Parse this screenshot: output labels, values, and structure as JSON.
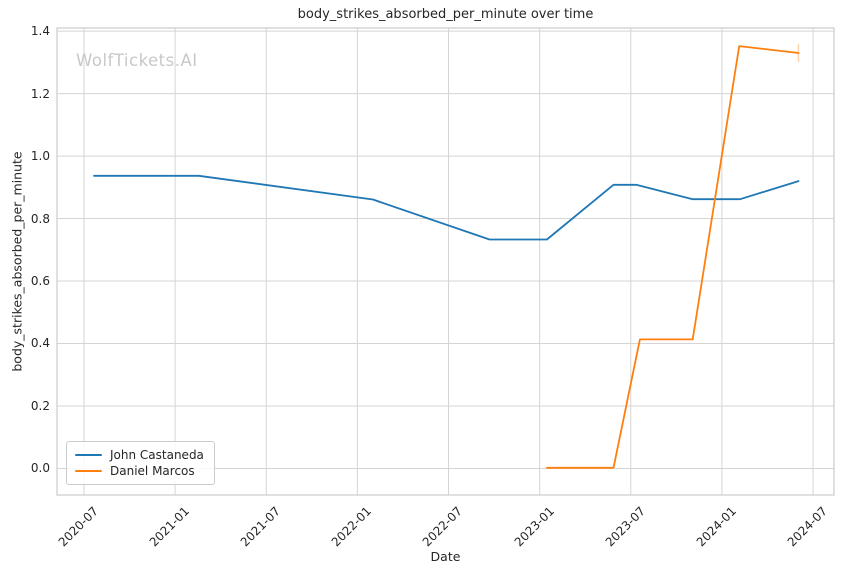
{
  "title": "body_strikes_absorbed_per_minute over time",
  "watermark": "WolfTickets.AI",
  "colors": {
    "series_blue": "#1f77b4",
    "series_orange": "#ff7f0e",
    "grid": "#d5d5d5",
    "axes_border": "#cccccc",
    "text": "#262626",
    "watermark": "#c8c8c8"
  },
  "chart_data": {
    "type": "line",
    "title": "body_strikes_absorbed_per_minute over time",
    "xlabel": "Date",
    "ylabel": "body_strikes_absorbed_per_minute",
    "grid": true,
    "legend_position": "lower left",
    "xlim": [
      2020.352,
      2024.615
    ],
    "ylim": [
      -0.085,
      1.41
    ],
    "x_ticks": [
      {
        "label": "2020-07",
        "value": 2020.5
      },
      {
        "label": "2021-01",
        "value": 2021.0
      },
      {
        "label": "2021-07",
        "value": 2021.5
      },
      {
        "label": "2022-01",
        "value": 2022.0
      },
      {
        "label": "2022-07",
        "value": 2022.5
      },
      {
        "label": "2023-01",
        "value": 2023.0
      },
      {
        "label": "2023-07",
        "value": 2023.5
      },
      {
        "label": "2024-01",
        "value": 2024.0
      },
      {
        "label": "2024-07",
        "value": 2024.5
      }
    ],
    "y_ticks": [
      {
        "label": "0.0",
        "value": 0.0
      },
      {
        "label": "0.2",
        "value": 0.2
      },
      {
        "label": "0.4",
        "value": 0.4
      },
      {
        "label": "0.6",
        "value": 0.6
      },
      {
        "label": "0.8",
        "value": 0.8
      },
      {
        "label": "1.0",
        "value": 1.0
      },
      {
        "label": "1.2",
        "value": 1.2
      },
      {
        "label": "1.4",
        "value": 1.4
      }
    ],
    "series": [
      {
        "name": "John Castaneda",
        "color": "#1f77b4",
        "dates": [
          "2020-07",
          "2021-02",
          "2022-01",
          "2022-09",
          "2023-01",
          "2023-05",
          "2023-07",
          "2023-11",
          "2024-02",
          "2024-06"
        ],
        "points": [
          [
            2020.555,
            0.937
          ],
          [
            2021.13,
            0.937
          ],
          [
            2022.085,
            0.861
          ],
          [
            2022.725,
            0.733
          ],
          [
            2023.04,
            0.733
          ],
          [
            2023.405,
            0.908
          ],
          [
            2023.53,
            0.908
          ],
          [
            2023.84,
            0.862
          ],
          [
            2024.1,
            0.862
          ],
          [
            2024.42,
            0.92
          ]
        ],
        "end_cap": false
      },
      {
        "name": "Daniel Marcos",
        "color": "#ff7f0e",
        "dates": [
          "2023-01",
          "2023-05",
          "2023-07",
          "2023-11",
          "2024-02",
          "2024-06"
        ],
        "points": [
          [
            2023.04,
            0.002
          ],
          [
            2023.405,
            0.002
          ],
          [
            2023.55,
            0.413
          ],
          [
            2023.84,
            0.413
          ],
          [
            2024.095,
            1.352
          ],
          [
            2024.42,
            1.33
          ]
        ],
        "end_cap": true
      }
    ]
  }
}
